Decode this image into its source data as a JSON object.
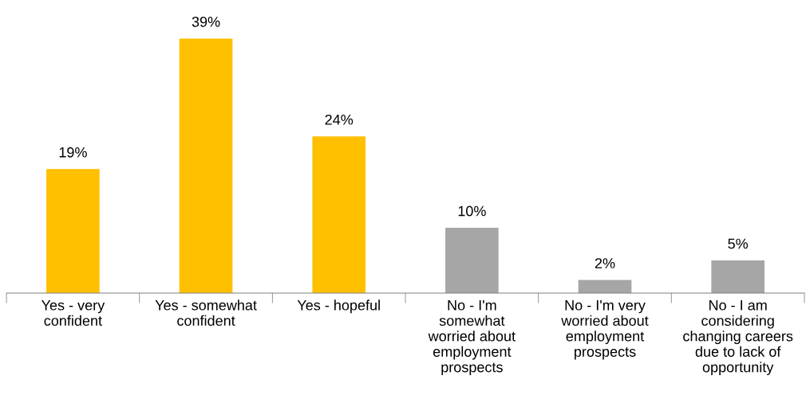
{
  "chart_data": {
    "type": "bar",
    "categories": [
      "Yes - very\nconfident",
      "Yes - somewhat\nconfident",
      "Yes - hopeful",
      "No - I'm\nsomewhat\nworried about\nemployment\nprospects",
      "No - I'm very\nworried about\nemployment\nprospects",
      "No - I am\nconsidering\nchanging careers\ndue to lack of\nopportunity"
    ],
    "values": [
      19,
      39,
      24,
      10,
      2,
      5
    ],
    "colors": [
      "#ffc000",
      "#ffc000",
      "#ffc000",
      "#a6a6a6",
      "#a6a6a6",
      "#a6a6a6"
    ],
    "value_labels": [
      "19%",
      "39%",
      "24%",
      "10%",
      "2%",
      "5%"
    ],
    "tick_labels": "x",
    "grid": false,
    "legend": false
  }
}
